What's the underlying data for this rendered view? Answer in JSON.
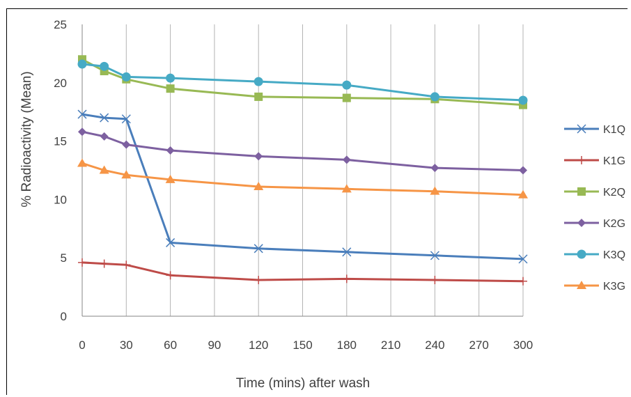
{
  "chart_data": {
    "type": "line",
    "title": "",
    "xlabel": "Time (mins) after wash",
    "ylabel": "% Radioactivity (Mean)",
    "x": [
      0,
      15,
      30,
      60,
      120,
      180,
      240,
      300
    ],
    "xlim": [
      0,
      300
    ],
    "ylim": [
      0,
      25
    ],
    "xticks": [
      "0",
      "30",
      "60",
      "90",
      "120",
      "150",
      "180",
      "210",
      "240",
      "270",
      "300"
    ],
    "yticks": [
      "0",
      "5",
      "10",
      "15",
      "20",
      "25"
    ],
    "grid": "vertical",
    "legend_position": "right",
    "series": [
      {
        "name": "K1Q",
        "color": "#4A7EBB",
        "marker": "x",
        "values": [
          17.3,
          17.0,
          16.9,
          6.3,
          5.8,
          5.5,
          5.2,
          4.9
        ]
      },
      {
        "name": "K1G",
        "color": "#BE4B48",
        "marker": "plus",
        "values": [
          4.6,
          4.5,
          4.4,
          3.5,
          3.1,
          3.2,
          3.1,
          3.0
        ]
      },
      {
        "name": "K2Q",
        "color": "#98B954",
        "marker": "square",
        "values": [
          22.0,
          21.0,
          20.3,
          19.5,
          18.8,
          18.7,
          18.6,
          18.1
        ]
      },
      {
        "name": "K2G",
        "color": "#7D60A0",
        "marker": "diamond",
        "values": [
          15.8,
          15.4,
          14.7,
          14.2,
          13.7,
          13.4,
          12.7,
          12.5
        ]
      },
      {
        "name": "K3Q",
        "color": "#46AAC5",
        "marker": "circle",
        "values": [
          21.6,
          21.4,
          20.5,
          20.4,
          20.1,
          19.8,
          18.8,
          18.5
        ]
      },
      {
        "name": "K3G",
        "color": "#F69546",
        "marker": "triangle",
        "values": [
          13.1,
          12.5,
          12.1,
          11.7,
          11.1,
          10.9,
          10.7,
          10.4
        ]
      }
    ]
  }
}
